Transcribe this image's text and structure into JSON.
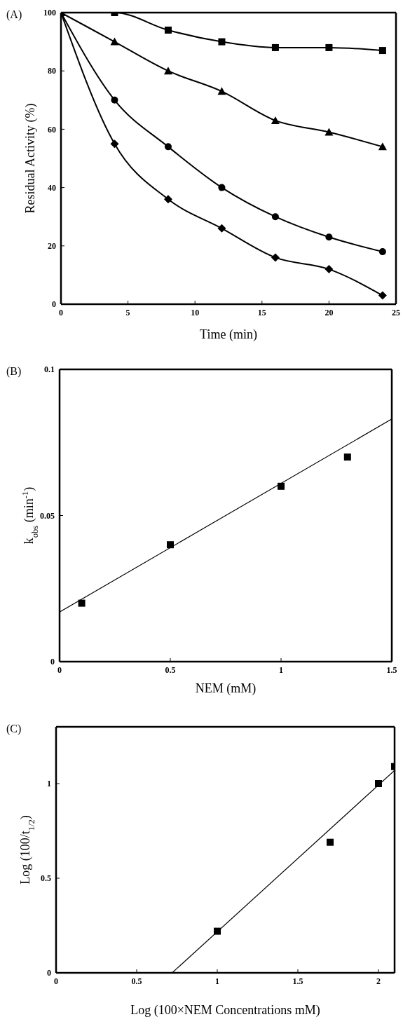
{
  "chart_data": [
    {
      "type": "line",
      "title": "(A)",
      "xlabel": "Time (min)",
      "ylabel": "Residual Activity (%)",
      "x": [
        0,
        4,
        8,
        12,
        16,
        20,
        24
      ],
      "xlim": [
        0,
        25
      ],
      "xticks": [
        0,
        5,
        10,
        15,
        20,
        25
      ],
      "ylim": [
        0,
        100
      ],
      "yticks": [
        0,
        20,
        40,
        60,
        80,
        100
      ],
      "series": [
        {
          "color": "#000000",
          "marker": "square",
          "values": [
            100,
            100,
            94,
            90,
            88,
            88,
            87
          ]
        },
        {
          "color": "#000000",
          "marker": "triangle",
          "values": [
            100,
            90,
            80,
            73,
            63,
            59,
            54
          ]
        },
        {
          "color": "#000000",
          "marker": "circle",
          "values": [
            100,
            70,
            54,
            40,
            30,
            23,
            18
          ]
        },
        {
          "color": "#000000",
          "marker": "diamond",
          "values": [
            100,
            55,
            36,
            26,
            16,
            12,
            3
          ]
        }
      ]
    },
    {
      "type": "scatter",
      "title": "(B)",
      "xlabel": "NEM (mM)",
      "ylabel": "k$_{obs}$ (min$^{-1}$)",
      "xlim": [
        0,
        1.5
      ],
      "xticks": [
        0,
        0.5,
        1,
        1.5
      ],
      "ylim": [
        0,
        0.1
      ],
      "yticks": [
        0,
        0.05,
        0.1
      ],
      "series": [
        {
          "color": "#000000",
          "marker": "square",
          "x": [
            0.1,
            0.5,
            1,
            1.3
          ],
          "values": [
            0.02,
            0.04,
            0.06,
            0.07
          ]
        },
        {
          "type": "line",
          "color": "#000000",
          "marker": "none",
          "x": [
            0,
            1.5
          ],
          "values": [
            0.017,
            0.083
          ]
        }
      ]
    },
    {
      "type": "scatter",
      "title": "(C)",
      "xlabel": "Log (100×NEM Concentrations mM)",
      "ylabel": "Log (100/t$_{1/2}$)",
      "xlim": [
        0,
        2.1
      ],
      "xticks": [
        0,
        0.5,
        1,
        1.5,
        2
      ],
      "ylim": [
        0,
        1.3
      ],
      "yticks": [
        0,
        0.5,
        1
      ],
      "series": [
        {
          "color": "#000000",
          "marker": "square",
          "x": [
            1,
            1.7,
            2,
            2.1
          ],
          "values": [
            0.22,
            0.69,
            1.0,
            1.09
          ]
        },
        {
          "type": "line",
          "color": "#000000",
          "marker": "none",
          "x": [
            0.72,
            2.1
          ],
          "values": [
            0,
            1.07
          ]
        }
      ]
    }
  ]
}
